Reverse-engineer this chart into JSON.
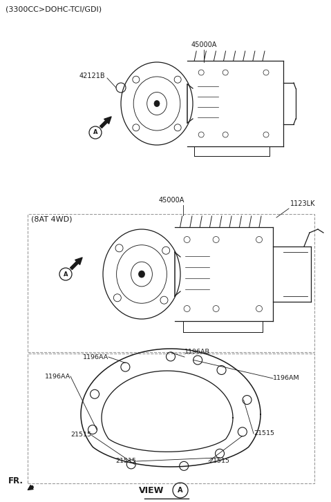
{
  "bg_color": "#ffffff",
  "line_color": "#1a1a1a",
  "dashed_color": "#999999",
  "fig_width": 4.79,
  "fig_height": 7.27,
  "dpi": 100,
  "label_fontsize": 7.0,
  "header_fontsize": 8.0,
  "texts": {
    "header1": "(3300CC>DOHC-TCI/GDI)",
    "header2": "(8AT 4WD)",
    "part1_1": "45000A",
    "part1_2": "42121B",
    "part2_1": "45000A",
    "part2_2": "1123LK",
    "part3_1": "1196AB",
    "part3_2a": "1196AA",
    "part3_2b": "1196AA",
    "part3_3": "1196AM",
    "part3_4a": "21515",
    "part3_4b": "21515",
    "part3_4c": "21515",
    "part3_4d": "21515",
    "view": "VIEW",
    "view_letter": "A",
    "fr": "FR."
  }
}
